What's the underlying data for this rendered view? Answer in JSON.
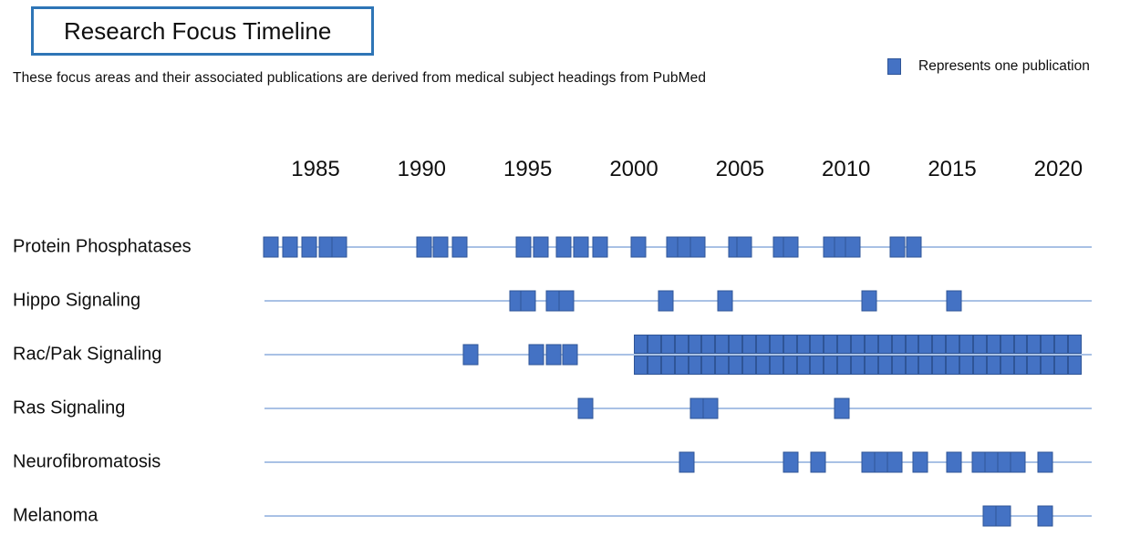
{
  "title": "Research Focus Timeline",
  "subtitle": "These focus areas and their associated publications are derived from medical subject headings from PubMed",
  "legend": {
    "label": "Represents one publication",
    "marker_color": "#4472C4",
    "marker_border_color": "#2F5597"
  },
  "colors": {
    "accent_border": "#2E75B6",
    "marker_fill": "#4472C4",
    "marker_border": "#2F5597",
    "timeline_line": "#A9C1E5",
    "text": "#0f0f0f"
  },
  "chart_data": {
    "type": "scatter",
    "title": "Research Focus Timeline",
    "unit_note": "each square represents one publication",
    "x_axis": {
      "tick_years": [
        1985,
        1990,
        1995,
        2000,
        2005,
        2010,
        2015,
        2020
      ],
      "range": [
        1982.5,
        2021.5
      ],
      "grid": false
    },
    "legend_position": "top-right",
    "rows": [
      {
        "label": "Protein Phosphatases",
        "publication_years": [
          1982.9,
          1983.8,
          1984.7,
          1985.5,
          1986.1,
          1990.1,
          1990.9,
          1991.8,
          1994.8,
          1995.6,
          1996.7,
          1997.5,
          1998.4,
          2000.2,
          2001.9,
          2002.4,
          2003.0,
          2004.8,
          2005.2,
          2006.9,
          2007.4,
          2009.3,
          2009.8,
          2010.3,
          2012.4,
          2013.2
        ]
      },
      {
        "label": "Hippo Signaling",
        "publication_years": [
          1994.5,
          1995.0,
          1996.2,
          1996.8,
          2001.5,
          2004.3,
          2011.1,
          2015.1
        ]
      },
      {
        "label": "Rac/Pak Signaling",
        "publication_years": [
          1992.3,
          1995.4,
          1996.2,
          1997.0
        ],
        "dense_block": {
          "start_year": 2000.0,
          "end_year": 2021.1,
          "stacked_rows": 2,
          "squares_per_row": 33,
          "total_publications": 66
        }
      },
      {
        "label": "Ras Signaling",
        "publication_years": [
          1997.7,
          2003.0,
          2003.6,
          2009.8
        ]
      },
      {
        "label": "Neurofibromatosis",
        "publication_years": [
          2002.5,
          2007.4,
          2008.7,
          2011.1,
          2011.7,
          2012.3,
          2013.5,
          2015.1,
          2016.3,
          2016.9,
          2017.5,
          2018.1,
          2019.4
        ]
      },
      {
        "label": "Melanoma",
        "publication_years": [
          2016.8,
          2017.4,
          2019.4
        ]
      }
    ]
  }
}
